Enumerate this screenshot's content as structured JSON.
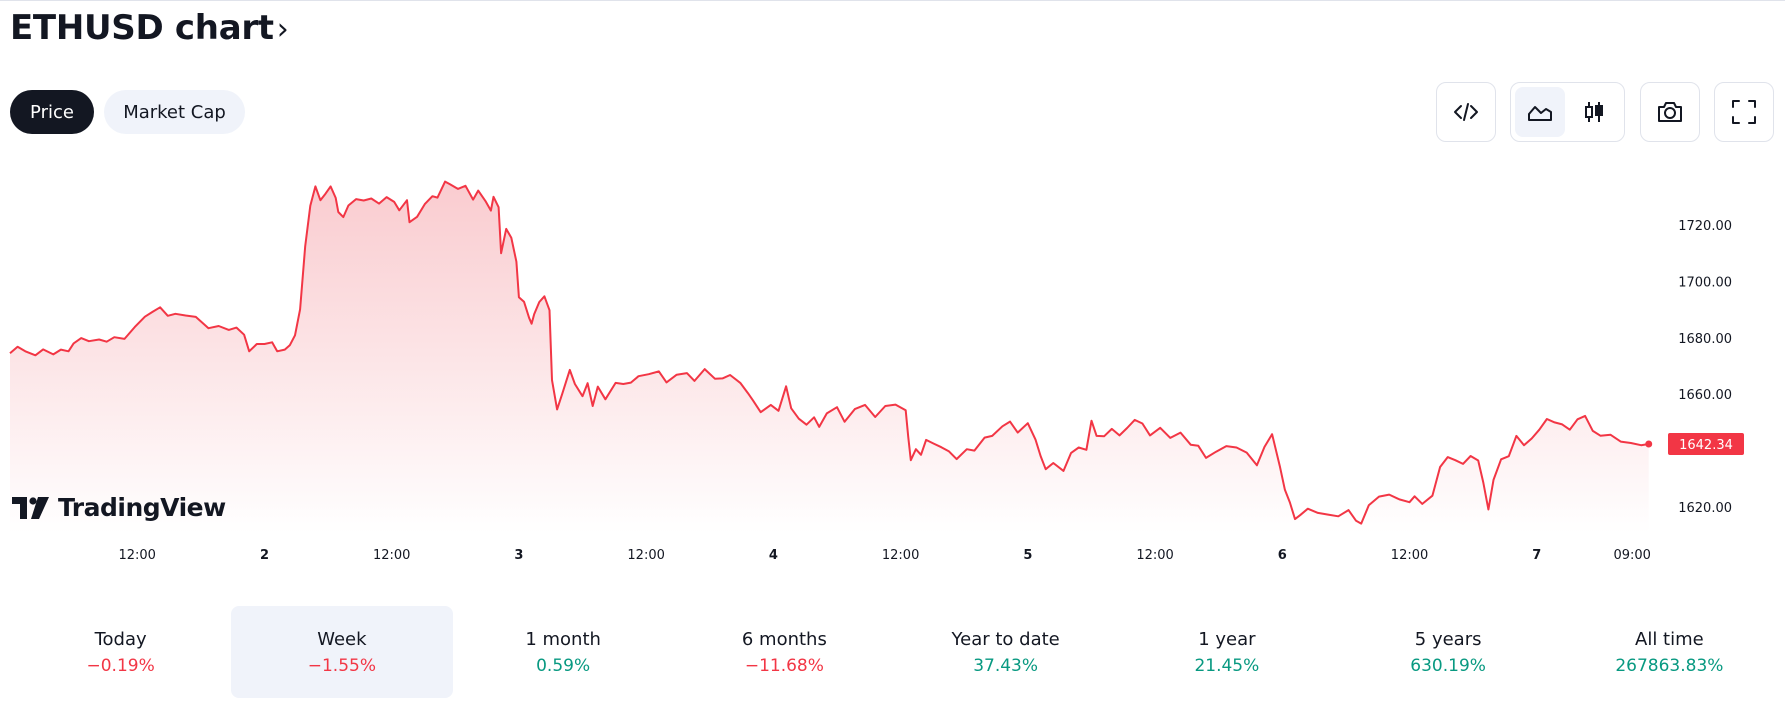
{
  "header": {
    "title": "ETHUSD chart",
    "chevron": "›"
  },
  "tabs": [
    {
      "label": "Price",
      "active": true
    },
    {
      "label": "Market Cap",
      "active": false
    }
  ],
  "toolbar": {
    "embed_icon": "code-icon",
    "area_icon": "area-chart-icon",
    "candle_icon": "candlestick-icon",
    "camera_icon": "camera-icon",
    "fullscreen_icon": "fullscreen-icon",
    "active_chart_type": "area"
  },
  "logo": {
    "text": "TradingView"
  },
  "chart_data": {
    "type": "area",
    "symbol": "ETHUSD",
    "colors": {
      "line": "#f23645",
      "fill_top": "#f9c9cd",
      "fill_bottom": "#ffffff",
      "last_label_bg": "#f23645"
    },
    "x_ticks": [
      {
        "label": "12:00",
        "t": 0.5,
        "bold": false
      },
      {
        "label": "2",
        "t": 1.0,
        "bold": true
      },
      {
        "label": "12:00",
        "t": 1.5,
        "bold": false
      },
      {
        "label": "3",
        "t": 2.0,
        "bold": true
      },
      {
        "label": "12:00",
        "t": 2.5,
        "bold": false
      },
      {
        "label": "4",
        "t": 3.0,
        "bold": true
      },
      {
        "label": "12:00",
        "t": 3.5,
        "bold": false
      },
      {
        "label": "5",
        "t": 4.0,
        "bold": true
      },
      {
        "label": "12:00",
        "t": 4.5,
        "bold": false
      },
      {
        "label": "6",
        "t": 5.0,
        "bold": true
      },
      {
        "label": "12:00",
        "t": 5.5,
        "bold": false
      },
      {
        "label": "7",
        "t": 6.0,
        "bold": true
      },
      {
        "label": "09:00",
        "t": 6.375,
        "bold": false
      }
    ],
    "y_ticks": [
      "1720.00",
      "1700.00",
      "1680.00",
      "1660.00",
      "1620.00"
    ],
    "y_tick_values": [
      1720,
      1700,
      1680,
      1660,
      1620
    ],
    "ylim": [
      1614,
      1738
    ],
    "xlim": [
      0.0,
      6.5
    ],
    "last_price": "1642.34",
    "last_value": 1642.34,
    "series": [
      {
        "values": [
          [
            0.0,
            1674.5
          ],
          [
            0.03,
            1676.8
          ],
          [
            0.06,
            1675.2
          ],
          [
            0.1,
            1673.8
          ],
          [
            0.13,
            1675.9
          ],
          [
            0.17,
            1674.1
          ],
          [
            0.2,
            1675.8
          ],
          [
            0.23,
            1675.2
          ],
          [
            0.25,
            1678.0
          ],
          [
            0.28,
            1679.9
          ],
          [
            0.31,
            1678.8
          ],
          [
            0.35,
            1679.4
          ],
          [
            0.38,
            1678.6
          ],
          [
            0.41,
            1680.2
          ],
          [
            0.45,
            1679.6
          ],
          [
            0.49,
            1683.8
          ],
          [
            0.53,
            1687.5
          ],
          [
            0.56,
            1689.2
          ],
          [
            0.59,
            1690.8
          ],
          [
            0.62,
            1687.8
          ],
          [
            0.65,
            1688.5
          ],
          [
            0.69,
            1687.9
          ],
          [
            0.73,
            1687.4
          ],
          [
            0.78,
            1683.4
          ],
          [
            0.82,
            1684.2
          ],
          [
            0.86,
            1682.8
          ],
          [
            0.89,
            1683.6
          ],
          [
            0.92,
            1681.1
          ],
          [
            0.94,
            1675.2
          ],
          [
            0.97,
            1677.8
          ],
          [
            1.0,
            1677.8
          ],
          [
            1.03,
            1678.4
          ],
          [
            1.05,
            1675.2
          ],
          [
            1.08,
            1675.8
          ],
          [
            1.1,
            1677.4
          ],
          [
            1.12,
            1680.9
          ],
          [
            1.14,
            1690.1
          ],
          [
            1.16,
            1712.5
          ],
          [
            1.18,
            1726.8
          ],
          [
            1.2,
            1733.7
          ],
          [
            1.22,
            1728.8
          ],
          [
            1.24,
            1731.1
          ],
          [
            1.26,
            1733.7
          ],
          [
            1.28,
            1729.6
          ],
          [
            1.29,
            1724.6
          ],
          [
            1.31,
            1722.8
          ],
          [
            1.33,
            1726.9
          ],
          [
            1.36,
            1729.2
          ],
          [
            1.39,
            1728.7
          ],
          [
            1.42,
            1729.4
          ],
          [
            1.45,
            1727.6
          ],
          [
            1.48,
            1729.9
          ],
          [
            1.51,
            1728.2
          ],
          [
            1.53,
            1725.2
          ],
          [
            1.56,
            1728.8
          ],
          [
            1.57,
            1721.0
          ],
          [
            1.6,
            1722.9
          ],
          [
            1.63,
            1727.4
          ],
          [
            1.66,
            1730.2
          ],
          [
            1.68,
            1729.7
          ],
          [
            1.71,
            1735.4
          ],
          [
            1.73,
            1734.4
          ],
          [
            1.76,
            1732.8
          ],
          [
            1.79,
            1733.9
          ],
          [
            1.82,
            1729.0
          ],
          [
            1.84,
            1732.2
          ],
          [
            1.87,
            1728.3
          ],
          [
            1.89,
            1725.1
          ],
          [
            1.9,
            1730.0
          ],
          [
            1.92,
            1726.3
          ],
          [
            1.93,
            1710.0
          ],
          [
            1.95,
            1718.6
          ],
          [
            1.97,
            1715.5
          ],
          [
            1.99,
            1707.0
          ],
          [
            2.0,
            1694.4
          ],
          [
            2.02,
            1692.8
          ],
          [
            2.04,
            1687.1
          ],
          [
            2.05,
            1685.0
          ],
          [
            2.06,
            1688.4
          ],
          [
            2.08,
            1692.7
          ],
          [
            2.1,
            1694.7
          ],
          [
            2.12,
            1689.8
          ],
          [
            2.13,
            1665.0
          ],
          [
            2.15,
            1654.6
          ],
          [
            2.17,
            1660.1
          ],
          [
            2.2,
            1668.6
          ],
          [
            2.22,
            1663.6
          ],
          [
            2.25,
            1659.3
          ],
          [
            2.27,
            1663.9
          ],
          [
            2.29,
            1655.8
          ],
          [
            2.31,
            1662.7
          ],
          [
            2.34,
            1658.2
          ],
          [
            2.38,
            1664.0
          ],
          [
            2.41,
            1663.6
          ],
          [
            2.44,
            1664.1
          ],
          [
            2.47,
            1666.4
          ],
          [
            2.51,
            1667.1
          ],
          [
            2.55,
            1668.1
          ],
          [
            2.58,
            1664.2
          ],
          [
            2.62,
            1666.9
          ],
          [
            2.66,
            1667.5
          ],
          [
            2.69,
            1664.7
          ],
          [
            2.73,
            1668.9
          ],
          [
            2.77,
            1665.5
          ],
          [
            2.8,
            1665.6
          ],
          [
            2.83,
            1666.8
          ],
          [
            2.87,
            1664.0
          ],
          [
            2.9,
            1660.4
          ],
          [
            2.92,
            1657.8
          ],
          [
            2.95,
            1653.6
          ],
          [
            2.99,
            1656.2
          ],
          [
            3.02,
            1654.1
          ],
          [
            3.05,
            1662.8
          ],
          [
            3.07,
            1655.0
          ],
          [
            3.1,
            1651.3
          ],
          [
            3.13,
            1649.2
          ],
          [
            3.16,
            1651.8
          ],
          [
            3.18,
            1648.4
          ],
          [
            3.21,
            1653.2
          ],
          [
            3.25,
            1655.4
          ],
          [
            3.28,
            1650.2
          ],
          [
            3.32,
            1654.7
          ],
          [
            3.36,
            1656.2
          ],
          [
            3.4,
            1651.9
          ],
          [
            3.44,
            1655.8
          ],
          [
            3.48,
            1656.3
          ],
          [
            3.52,
            1654.3
          ],
          [
            3.53,
            1645.0
          ],
          [
            3.54,
            1636.6
          ],
          [
            3.56,
            1640.5
          ],
          [
            3.58,
            1638.5
          ],
          [
            3.6,
            1643.8
          ],
          [
            3.63,
            1642.5
          ],
          [
            3.66,
            1641.2
          ],
          [
            3.69,
            1639.7
          ],
          [
            3.72,
            1637.0
          ],
          [
            3.76,
            1640.5
          ],
          [
            3.79,
            1640.0
          ],
          [
            3.83,
            1644.6
          ],
          [
            3.86,
            1645.2
          ],
          [
            3.9,
            1648.6
          ],
          [
            3.93,
            1650.3
          ],
          [
            3.96,
            1646.4
          ],
          [
            4.0,
            1649.7
          ],
          [
            4.03,
            1643.9
          ],
          [
            4.05,
            1638.1
          ],
          [
            4.07,
            1633.4
          ],
          [
            4.1,
            1635.6
          ],
          [
            4.14,
            1632.8
          ],
          [
            4.17,
            1639.2
          ],
          [
            4.2,
            1641.1
          ],
          [
            4.23,
            1640.3
          ],
          [
            4.25,
            1650.6
          ],
          [
            4.27,
            1645.2
          ],
          [
            4.3,
            1645.1
          ],
          [
            4.33,
            1647.7
          ],
          [
            4.36,
            1645.4
          ],
          [
            4.39,
            1648.0
          ],
          [
            4.42,
            1650.9
          ],
          [
            4.45,
            1649.6
          ],
          [
            4.48,
            1645.4
          ],
          [
            4.52,
            1648.1
          ],
          [
            4.56,
            1644.5
          ],
          [
            4.6,
            1646.4
          ],
          [
            4.64,
            1642.1
          ],
          [
            4.67,
            1641.7
          ],
          [
            4.7,
            1637.4
          ],
          [
            4.74,
            1639.6
          ],
          [
            4.78,
            1641.6
          ],
          [
            4.82,
            1641.1
          ],
          [
            4.86,
            1639.3
          ],
          [
            4.9,
            1634.8
          ],
          [
            4.93,
            1641.3
          ],
          [
            4.96,
            1645.8
          ],
          [
            4.99,
            1634.5
          ],
          [
            5.01,
            1626.1
          ],
          [
            5.03,
            1621.6
          ],
          [
            5.05,
            1615.7
          ],
          [
            5.07,
            1617.1
          ],
          [
            5.1,
            1619.4
          ],
          [
            5.14,
            1617.9
          ],
          [
            5.18,
            1617.3
          ],
          [
            5.22,
            1616.7
          ],
          [
            5.26,
            1618.9
          ],
          [
            5.29,
            1615.1
          ],
          [
            5.31,
            1614.1
          ],
          [
            5.34,
            1620.6
          ],
          [
            5.38,
            1623.7
          ],
          [
            5.42,
            1624.4
          ],
          [
            5.46,
            1622.7
          ],
          [
            5.5,
            1621.7
          ],
          [
            5.52,
            1623.8
          ],
          [
            5.55,
            1621.1
          ],
          [
            5.59,
            1624.0
          ],
          [
            5.62,
            1634.2
          ],
          [
            5.65,
            1637.7
          ],
          [
            5.68,
            1636.6
          ],
          [
            5.71,
            1635.3
          ],
          [
            5.74,
            1638.1
          ],
          [
            5.77,
            1636.5
          ],
          [
            5.79,
            1628.7
          ],
          [
            5.81,
            1619.1
          ],
          [
            5.83,
            1629.6
          ],
          [
            5.86,
            1636.9
          ],
          [
            5.89,
            1638.0
          ],
          [
            5.92,
            1645.2
          ],
          [
            5.95,
            1641.9
          ],
          [
            5.98,
            1644.3
          ],
          [
            6.01,
            1647.4
          ],
          [
            6.04,
            1651.2
          ],
          [
            6.07,
            1650.0
          ],
          [
            6.1,
            1649.3
          ],
          [
            6.13,
            1647.4
          ],
          [
            6.16,
            1651.1
          ],
          [
            6.19,
            1652.3
          ],
          [
            6.22,
            1647.0
          ],
          [
            6.25,
            1645.3
          ],
          [
            6.29,
            1645.6
          ],
          [
            6.33,
            1643.2
          ],
          [
            6.37,
            1642.7
          ],
          [
            6.41,
            1641.9
          ],
          [
            6.44,
            1642.34
          ]
        ]
      }
    ]
  },
  "periods": [
    {
      "label": "Today",
      "value": "−0.19%",
      "sign": "neg",
      "active": false
    },
    {
      "label": "Week",
      "value": "−1.55%",
      "sign": "neg",
      "active": true
    },
    {
      "label": "1 month",
      "value": "0.59%",
      "sign": "pos",
      "active": false
    },
    {
      "label": "6 months",
      "value": "−11.68%",
      "sign": "neg",
      "active": false
    },
    {
      "label": "Year to date",
      "value": "37.43%",
      "sign": "pos",
      "active": false
    },
    {
      "label": "1 year",
      "value": "21.45%",
      "sign": "pos",
      "active": false
    },
    {
      "label": "5 years",
      "value": "630.19%",
      "sign": "pos",
      "active": false
    },
    {
      "label": "All time",
      "value": "267863.83%",
      "sign": "pos",
      "active": false
    }
  ]
}
